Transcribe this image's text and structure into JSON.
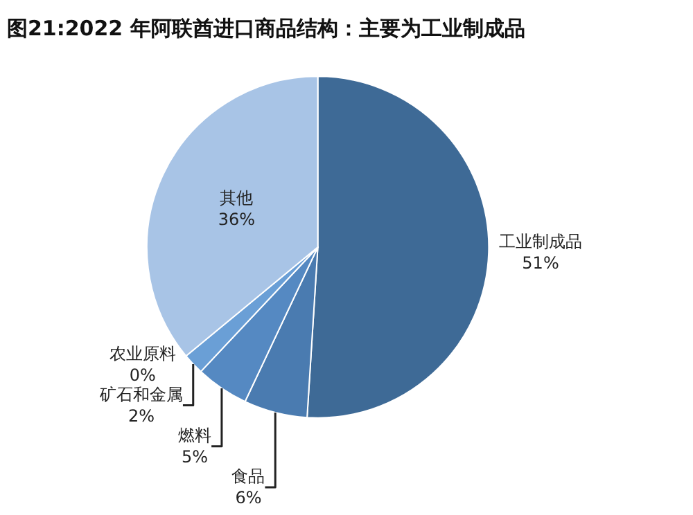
{
  "chart_data": {
    "type": "pie",
    "title": "图21:2022 年阿联酋进口商品结构：主要为工业制成品",
    "categories": [
      "工业制成品",
      "食品",
      "燃料",
      "矿石和金属",
      "农业原料",
      "其他"
    ],
    "values": [
      51,
      6,
      5,
      2,
      0,
      36
    ],
    "value_labels": [
      "51%",
      "6%",
      "5%",
      "2%",
      "0%",
      "36%"
    ],
    "colors": [
      "#3e6a96",
      "#4a7bb0",
      "#5589c2",
      "#6a9fd6",
      "#8fbbe6",
      "#a8c4e6"
    ],
    "legend": false
  }
}
